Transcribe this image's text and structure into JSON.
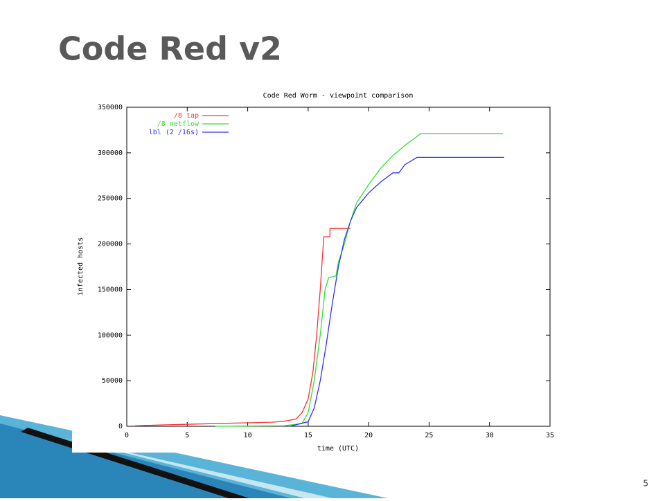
{
  "slide_title": "Code Red v2",
  "page_number": 5,
  "chart_data": {
    "type": "line",
    "title": "Code Red Worm - viewpoint comparison",
    "x_label": "time (UTC)",
    "y_label": "infected hosts",
    "xlim": [
      0,
      35
    ],
    "xticks": [
      0,
      5,
      10,
      15,
      20,
      25,
      30,
      35
    ],
    "ylim": [
      0,
      350000
    ],
    "yticks": [
      0,
      50000,
      100000,
      150000,
      200000,
      250000,
      300000,
      350000
    ],
    "legend": "top-left",
    "series": [
      {
        "name": "/8 tap",
        "color": "#ff3030",
        "x": [
          0.7,
          3,
          6,
          9,
          12,
          13,
          14,
          14.5,
          15,
          15.4,
          15.7,
          16,
          16.2,
          16.3,
          16.8,
          16.8,
          18.5
        ],
        "values": [
          500,
          1500,
          2500,
          3500,
          4500,
          5500,
          8000,
          15000,
          30000,
          60000,
          100000,
          150000,
          190000,
          208000,
          208000,
          217000,
          217000
        ]
      },
      {
        "name": "/8 netflow",
        "color": "#30e030",
        "x": [
          7.3,
          13,
          14.5,
          15,
          15.5,
          16,
          16.4,
          16.7,
          17.3,
          17.5,
          18,
          18.5,
          19,
          20,
          21,
          22,
          23,
          24,
          24.3,
          31.1
        ],
        "values": [
          0,
          500,
          3000,
          15000,
          50000,
          100000,
          150000,
          163000,
          165000,
          180000,
          200000,
          225000,
          245000,
          265000,
          283000,
          297000,
          308000,
          318000,
          321000,
          321000
        ]
      },
      {
        "name": "lbl (2 /16s)",
        "color": "#3030ff",
        "x": [
          13.5,
          15,
          15.5,
          16,
          16.5,
          17,
          17.5,
          18,
          18.5,
          19,
          20,
          21,
          22,
          22.5,
          23,
          24,
          31.2
        ],
        "values": [
          0,
          5000,
          20000,
          50000,
          90000,
          135000,
          175000,
          205000,
          225000,
          240000,
          256000,
          268000,
          278000,
          278000,
          287000,
          295000,
          295000
        ]
      }
    ]
  }
}
